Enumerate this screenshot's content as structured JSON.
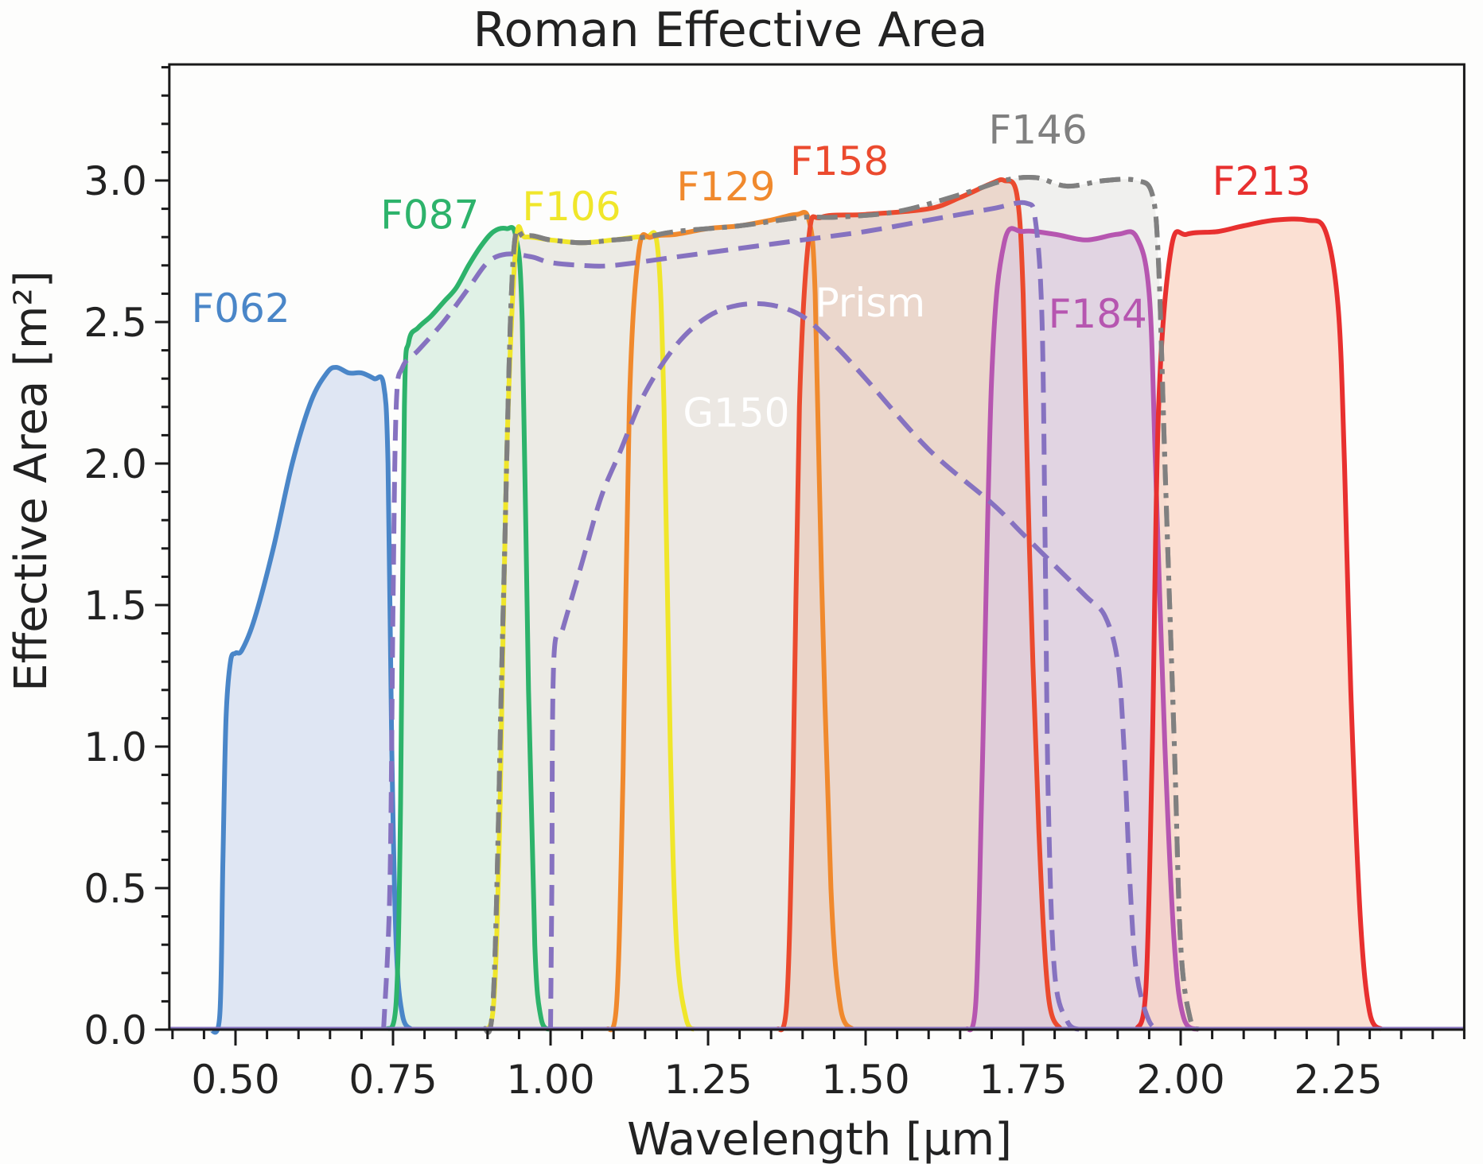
{
  "chart_data": {
    "type": "area",
    "title": "Roman Effective Area",
    "xlabel": "Wavelength [μm]",
    "ylabel": "Effective Area [m²]",
    "xlim": [
      0.395,
      2.45
    ],
    "ylim": [
      0.0,
      3.41
    ],
    "xticks": [
      0.5,
      0.75,
      1.0,
      1.25,
      1.5,
      1.75,
      2.0,
      2.25
    ],
    "xtick_labels": [
      "0.50",
      "0.75",
      "1.00",
      "1.25",
      "1.50",
      "1.75",
      "2.00",
      "2.25"
    ],
    "yticks": [
      0.0,
      0.5,
      1.0,
      1.5,
      2.0,
      2.5,
      3.0
    ],
    "ytick_labels": [
      "0.0",
      "0.5",
      "1.0",
      "1.5",
      "2.0",
      "2.5",
      "3.0"
    ],
    "x_minor_step": 0.05,
    "y_minor_step": 0.1,
    "grid": false,
    "legend": "inline labels",
    "series": [
      {
        "name": "F062",
        "style": "solid",
        "color": "#4a86c8",
        "fill": "#d4def0",
        "label_pos": [
          0.43,
          2.5
        ],
        "points": [
          [
            0.46,
            0
          ],
          [
            0.475,
            0.05
          ],
          [
            0.48,
            0.6
          ],
          [
            0.485,
            1.1
          ],
          [
            0.492,
            1.3
          ],
          [
            0.5,
            1.33
          ],
          [
            0.51,
            1.34
          ],
          [
            0.53,
            1.45
          ],
          [
            0.56,
            1.7
          ],
          [
            0.59,
            2.0
          ],
          [
            0.62,
            2.22
          ],
          [
            0.645,
            2.32
          ],
          [
            0.66,
            2.34
          ],
          [
            0.68,
            2.32
          ],
          [
            0.7,
            2.32
          ],
          [
            0.72,
            2.3
          ],
          [
            0.735,
            2.28
          ],
          [
            0.742,
            2.0
          ],
          [
            0.748,
            1.0
          ],
          [
            0.755,
            0.3
          ],
          [
            0.765,
            0.05
          ],
          [
            0.78,
            0
          ]
        ]
      },
      {
        "name": "F087",
        "style": "solid",
        "color": "#2db36b",
        "fill": "#d6ecdf",
        "label_pos": [
          0.73,
          2.83
        ],
        "points": [
          [
            0.74,
            0
          ],
          [
            0.755,
            0.1
          ],
          [
            0.762,
            0.8
          ],
          [
            0.768,
            2.2
          ],
          [
            0.775,
            2.43
          ],
          [
            0.79,
            2.48
          ],
          [
            0.81,
            2.52
          ],
          [
            0.83,
            2.57
          ],
          [
            0.85,
            2.62
          ],
          [
            0.87,
            2.7
          ],
          [
            0.89,
            2.77
          ],
          [
            0.91,
            2.82
          ],
          [
            0.93,
            2.83
          ],
          [
            0.945,
            2.8
          ],
          [
            0.955,
            2.5
          ],
          [
            0.965,
            1.2
          ],
          [
            0.975,
            0.3
          ],
          [
            0.985,
            0.04
          ],
          [
            1.0,
            0
          ]
        ]
      },
      {
        "name": "F106",
        "style": "solid",
        "color": "#f0e62a",
        "fill": "#ebe6cc",
        "label_pos": [
          0.955,
          2.86
        ],
        "points": [
          [
            0.895,
            0
          ],
          [
            0.91,
            0.1
          ],
          [
            0.92,
            0.8
          ],
          [
            0.93,
            2.0
          ],
          [
            0.945,
            2.77
          ],
          [
            0.96,
            2.8
          ],
          [
            1.0,
            2.79
          ],
          [
            1.05,
            2.78
          ],
          [
            1.1,
            2.79
          ],
          [
            1.15,
            2.8
          ],
          [
            1.17,
            2.76
          ],
          [
            1.18,
            2.2
          ],
          [
            1.19,
            1.0
          ],
          [
            1.2,
            0.3
          ],
          [
            1.215,
            0.04
          ],
          [
            1.23,
            0
          ]
        ]
      },
      {
        "name": "F129",
        "style": "solid",
        "color": "#f0892d",
        "fill": "#ead5c2",
        "label_pos": [
          1.2,
          2.93
        ],
        "points": [
          [
            1.09,
            0
          ],
          [
            1.105,
            0.1
          ],
          [
            1.115,
            0.9
          ],
          [
            1.125,
            2.2
          ],
          [
            1.14,
            2.75
          ],
          [
            1.16,
            2.8
          ],
          [
            1.2,
            2.81
          ],
          [
            1.25,
            2.83
          ],
          [
            1.3,
            2.84
          ],
          [
            1.35,
            2.86
          ],
          [
            1.39,
            2.88
          ],
          [
            1.41,
            2.86
          ],
          [
            1.42,
            2.6
          ],
          [
            1.43,
            1.6
          ],
          [
            1.445,
            0.5
          ],
          [
            1.46,
            0.08
          ],
          [
            1.48,
            0
          ]
        ]
      },
      {
        "name": "F146",
        "style": "dashdot",
        "color": "#808080",
        "fill": "#ebebe9",
        "label_pos": [
          1.695,
          3.13
        ],
        "points": [
          [
            0.895,
            0
          ],
          [
            0.91,
            0.15
          ],
          [
            0.925,
            1.5
          ],
          [
            0.94,
            2.7
          ],
          [
            0.96,
            2.8
          ],
          [
            1.0,
            2.79
          ],
          [
            1.05,
            2.78
          ],
          [
            1.1,
            2.79
          ],
          [
            1.15,
            2.8
          ],
          [
            1.2,
            2.82
          ],
          [
            1.3,
            2.84
          ],
          [
            1.4,
            2.87
          ],
          [
            1.45,
            2.87
          ],
          [
            1.55,
            2.89
          ],
          [
            1.65,
            2.95
          ],
          [
            1.72,
            3.0
          ],
          [
            1.77,
            3.01
          ],
          [
            1.82,
            2.98
          ],
          [
            1.88,
            3.0
          ],
          [
            1.93,
            3.0
          ],
          [
            1.955,
            2.95
          ],
          [
            1.965,
            2.7
          ],
          [
            1.975,
            2.0
          ],
          [
            1.99,
            1.0
          ],
          [
            2.0,
            0.3
          ],
          [
            2.015,
            0.04
          ],
          [
            2.03,
            0
          ]
        ]
      },
      {
        "name": "F158",
        "style": "solid",
        "color": "#eb4a2e",
        "fill": "#e9cfc0",
        "label_pos": [
          1.38,
          3.02
        ],
        "points": [
          [
            1.36,
            0
          ],
          [
            1.375,
            0.1
          ],
          [
            1.385,
            0.9
          ],
          [
            1.395,
            2.2
          ],
          [
            1.41,
            2.8
          ],
          [
            1.43,
            2.87
          ],
          [
            1.5,
            2.88
          ],
          [
            1.6,
            2.9
          ],
          [
            1.65,
            2.94
          ],
          [
            1.7,
            2.99
          ],
          [
            1.72,
            3.0
          ],
          [
            1.74,
            2.95
          ],
          [
            1.75,
            2.6
          ],
          [
            1.76,
            1.7
          ],
          [
            1.775,
            0.7
          ],
          [
            1.79,
            0.12
          ],
          [
            1.81,
            0
          ]
        ]
      },
      {
        "name": "F184",
        "style": "solid",
        "color": "#b656b0",
        "fill": "#dccbdd",
        "label_pos": [
          1.79,
          2.48
        ],
        "points": [
          [
            1.66,
            0
          ],
          [
            1.675,
            0.1
          ],
          [
            1.685,
            0.9
          ],
          [
            1.7,
            2.3
          ],
          [
            1.72,
            2.78
          ],
          [
            1.75,
            2.82
          ],
          [
            1.8,
            2.81
          ],
          [
            1.85,
            2.79
          ],
          [
            1.9,
            2.81
          ],
          [
            1.93,
            2.8
          ],
          [
            1.95,
            2.6
          ],
          [
            1.96,
            2.0
          ],
          [
            1.975,
            1.0
          ],
          [
            1.99,
            0.3
          ],
          [
            2.005,
            0.04
          ],
          [
            2.03,
            0
          ]
        ]
      },
      {
        "name": "F213",
        "style": "solid",
        "color": "#e8302f",
        "fill": "#f9d5c5",
        "label_pos": [
          2.05,
          2.95
        ],
        "points": [
          [
            1.93,
            0
          ],
          [
            1.945,
            0.15
          ],
          [
            1.955,
            1.0
          ],
          [
            1.965,
            2.2
          ],
          [
            1.985,
            2.76
          ],
          [
            2.01,
            2.81
          ],
          [
            2.06,
            2.82
          ],
          [
            2.1,
            2.84
          ],
          [
            2.15,
            2.86
          ],
          [
            2.2,
            2.86
          ],
          [
            2.23,
            2.82
          ],
          [
            2.25,
            2.55
          ],
          [
            2.26,
            2.0
          ],
          [
            2.27,
            1.2
          ],
          [
            2.285,
            0.4
          ],
          [
            2.3,
            0.06
          ],
          [
            2.32,
            0
          ]
        ]
      },
      {
        "name": "Prism",
        "style": "dashed",
        "color": "#8672c0",
        "fill": "none",
        "label_pos": [
          1.42,
          2.52
        ],
        "label_color": "#ffffff",
        "points": [
          [
            0.735,
            0
          ],
          [
            0.745,
            0.5
          ],
          [
            0.75,
            1.5
          ],
          [
            0.755,
            2.2
          ],
          [
            0.765,
            2.34
          ],
          [
            0.79,
            2.4
          ],
          [
            0.83,
            2.5
          ],
          [
            0.87,
            2.62
          ],
          [
            0.9,
            2.71
          ],
          [
            0.93,
            2.74
          ],
          [
            0.97,
            2.73
          ],
          [
            1.0,
            2.71
          ],
          [
            1.05,
            2.7
          ],
          [
            1.1,
            2.7
          ],
          [
            1.2,
            2.73
          ],
          [
            1.3,
            2.76
          ],
          [
            1.4,
            2.79
          ],
          [
            1.5,
            2.82
          ],
          [
            1.6,
            2.86
          ],
          [
            1.7,
            2.9
          ],
          [
            1.755,
            2.92
          ],
          [
            1.77,
            2.85
          ],
          [
            1.78,
            2.5
          ],
          [
            1.785,
            1.7
          ],
          [
            1.79,
            0.8
          ],
          [
            1.8,
            0.2
          ],
          [
            1.82,
            0.03
          ],
          [
            1.84,
            0
          ]
        ]
      },
      {
        "name": "G150",
        "style": "dashed",
        "color": "#8672c0",
        "fill": "none",
        "label_pos": [
          1.21,
          2.13
        ],
        "label_color": "#ffffff",
        "points": [
          [
            1.0,
            0
          ],
          [
            1.002,
            0.5
          ],
          [
            1.005,
            1.3
          ],
          [
            1.02,
            1.42
          ],
          [
            1.05,
            1.65
          ],
          [
            1.08,
            1.88
          ],
          [
            1.11,
            2.04
          ],
          [
            1.15,
            2.25
          ],
          [
            1.2,
            2.42
          ],
          [
            1.25,
            2.52
          ],
          [
            1.3,
            2.56
          ],
          [
            1.35,
            2.56
          ],
          [
            1.4,
            2.52
          ],
          [
            1.45,
            2.42
          ],
          [
            1.5,
            2.3
          ],
          [
            1.6,
            2.05
          ],
          [
            1.7,
            1.86
          ],
          [
            1.75,
            1.75
          ],
          [
            1.8,
            1.64
          ],
          [
            1.85,
            1.53
          ],
          [
            1.88,
            1.46
          ],
          [
            1.9,
            1.3
          ],
          [
            1.91,
            1.0
          ],
          [
            1.92,
            0.5
          ],
          [
            1.93,
            0.2
          ],
          [
            1.95,
            0.03
          ],
          [
            1.97,
            0
          ]
        ]
      }
    ]
  }
}
